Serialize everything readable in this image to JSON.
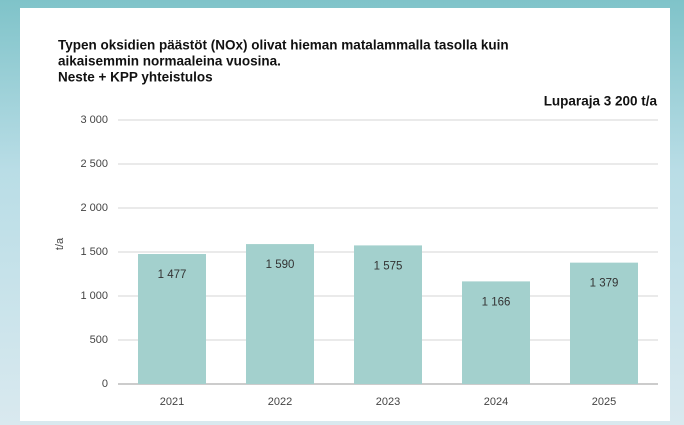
{
  "chart_data": {
    "type": "bar",
    "title": [
      "Typen oksidien päästöt (NOx) olivat hieman matalammalla tasolla kuin",
      "aikaisemmin normaaleina vuosina."
    ],
    "subtitle": "Neste + KPP yhteistulos",
    "annotation": "Luparaja 3 200 t/a",
    "y_label": "t/a",
    "categories": [
      "2021",
      "2022",
      "2023",
      "2024",
      "2025"
    ],
    "values": [
      1477,
      1590,
      1575,
      1166,
      1379
    ],
    "value_labels": [
      "1 477",
      "1 590",
      "1 575",
      "1 166",
      "1 379"
    ],
    "color": "#a3d0cd",
    "ylim": [
      0,
      3000
    ],
    "yticks": [
      0,
      500,
      {
        "value": 1000,
        "label": "1 000"
      },
      {
        "value": 1500,
        "label": "1 500"
      },
      {
        "value": 2000,
        "label": "2 000"
      },
      {
        "value": 2500,
        "label": "2 500"
      },
      {
        "value": 3000,
        "label": "3 000"
      }
    ],
    "grid": true
  }
}
